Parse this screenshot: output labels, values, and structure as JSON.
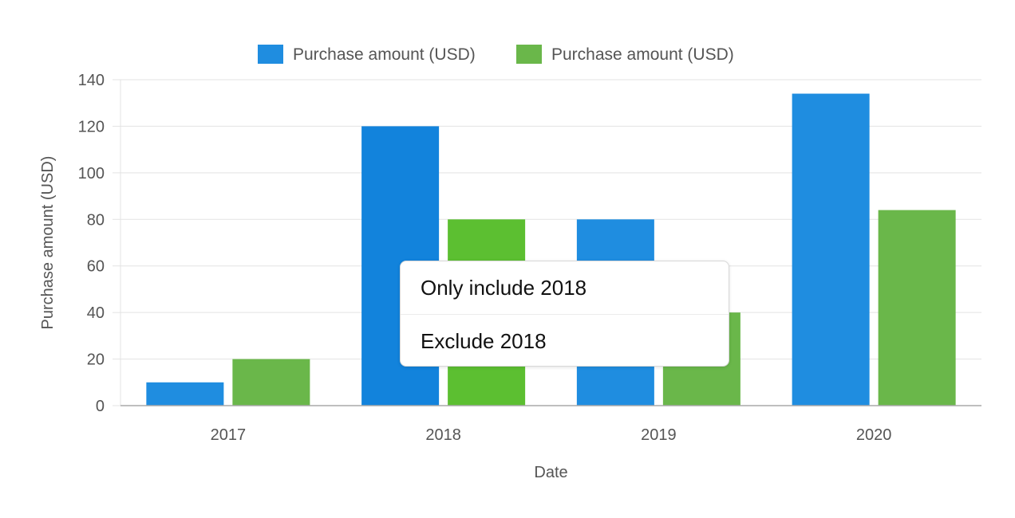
{
  "chart_data": {
    "type": "bar",
    "categories": [
      "2017",
      "2018",
      "2019",
      "2020"
    ],
    "series": [
      {
        "name": "Purchase amount (USD)",
        "color": "#1f8de0",
        "values": [
          10,
          120,
          80,
          134
        ]
      },
      {
        "name": "Purchase amount (USD)",
        "color": "#6ab74a",
        "values": [
          20,
          80,
          40,
          84
        ]
      }
    ],
    "highlight": {
      "category": "2018",
      "colors": [
        "#1283dc",
        "#5cbf31"
      ]
    },
    "xlabel": "Date",
    "ylabel": "Purchase amount (USD)",
    "ylim": [
      0,
      140
    ],
    "yticks": [
      0,
      20,
      40,
      60,
      80,
      100,
      120,
      140
    ],
    "grid": true,
    "legend_position": "top-center"
  },
  "context_menu": {
    "items": [
      {
        "label": "Only include 2018"
      },
      {
        "label": "Exclude 2018"
      }
    ]
  }
}
